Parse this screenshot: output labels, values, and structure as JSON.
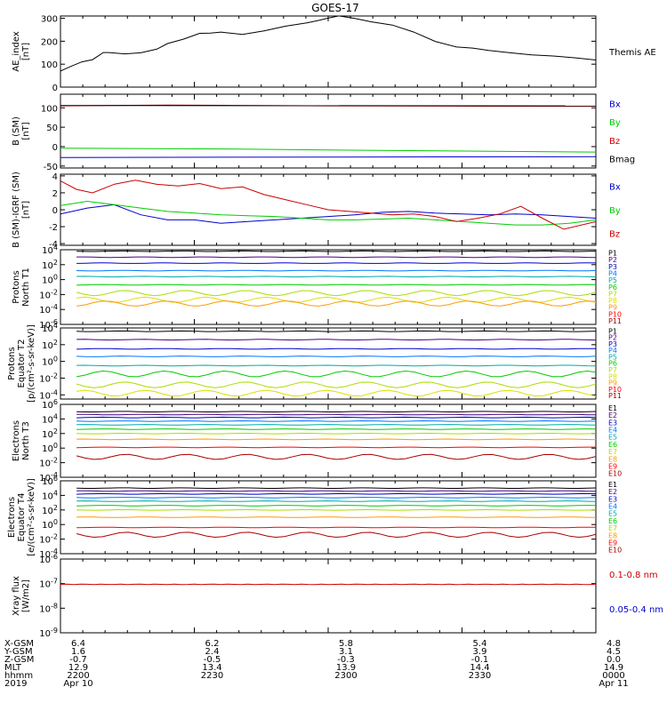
{
  "title": "GOES-17",
  "chart_data": [
    {
      "type": "line",
      "panel": "ae",
      "ylabel": "AE_index\n[nT]",
      "ylim": [
        0,
        310
      ],
      "yticks": [
        {
          "v": 0,
          "label": "0"
        },
        {
          "v": 100,
          "label": "100"
        },
        {
          "v": 200,
          "label": "200"
        },
        {
          "v": 300,
          "label": "300"
        }
      ],
      "series": [
        {
          "name": "Themis AE",
          "color": "#000000",
          "x": [
            0,
            0.02,
            0.04,
            0.06,
            0.08,
            0.09,
            0.12,
            0.15,
            0.18,
            0.2,
            0.23,
            0.26,
            0.28,
            0.3,
            0.34,
            0.38,
            0.42,
            0.46,
            0.48,
            0.5,
            0.52,
            0.55,
            0.58,
            0.62,
            0.66,
            0.7,
            0.74,
            0.77,
            0.8,
            0.84,
            0.88,
            0.92,
            0.96,
            1.0
          ],
          "y": [
            70,
            90,
            110,
            120,
            150,
            150,
            145,
            150,
            165,
            190,
            210,
            235,
            235,
            240,
            230,
            245,
            265,
            280,
            290,
            300,
            310,
            300,
            285,
            270,
            240,
            200,
            175,
            170,
            160,
            150,
            140,
            135,
            128,
            118
          ]
        }
      ]
    },
    {
      "type": "line",
      "panel": "b_sm",
      "ylabel": "B (SM)\n[nT]",
      "ylim": [
        -55,
        135
      ],
      "yticks": [
        {
          "v": -50,
          "label": "-50"
        },
        {
          "v": 0,
          "label": "0"
        },
        {
          "v": 50,
          "label": "50"
        },
        {
          "v": 100,
          "label": "100"
        }
      ],
      "series": [
        {
          "name": "Bx",
          "color": "#0000cc",
          "x": [
            0,
            1
          ],
          "y": [
            -28,
            -26
          ]
        },
        {
          "name": "By",
          "color": "#00cc00",
          "x": [
            0,
            0.3,
            0.6,
            1
          ],
          "y": [
            -4,
            -6,
            -10,
            -14
          ]
        },
        {
          "name": "Bz",
          "color": "#cc0000",
          "x": [
            0,
            0.2,
            0.5,
            0.8,
            1
          ],
          "y": [
            105,
            107,
            105,
            104,
            104
          ]
        },
        {
          "name": "Bmag",
          "color": "#000000",
          "x": [
            0,
            1
          ],
          "y": [
            106,
            105
          ]
        }
      ]
    },
    {
      "type": "line",
      "panel": "b_igrf",
      "ylabel": "B (SM)-IGRF (SM)\n[nT]",
      "ylim": [
        -4.2,
        4.2
      ],
      "yticks": [
        {
          "v": -4,
          "label": "-4"
        },
        {
          "v": -2,
          "label": "-2"
        },
        {
          "v": 0,
          "label": "0"
        },
        {
          "v": 2,
          "label": "2"
        },
        {
          "v": 4,
          "label": "4"
        }
      ],
      "series": [
        {
          "name": "Bx",
          "color": "#0000cc",
          "x": [
            0,
            0.05,
            0.1,
            0.15,
            0.2,
            0.25,
            0.3,
            0.35,
            0.4,
            0.45,
            0.5,
            0.55,
            0.6,
            0.65,
            0.7,
            0.75,
            0.8,
            0.85,
            0.9,
            0.95,
            1
          ],
          "y": [
            -0.5,
            0.2,
            0.6,
            -0.6,
            -1.2,
            -1.2,
            -1.6,
            -1.4,
            -1.2,
            -1.0,
            -0.8,
            -0.6,
            -0.3,
            -0.2,
            -0.4,
            -0.5,
            -0.6,
            -0.5,
            -0.6,
            -0.8,
            -1.0
          ]
        },
        {
          "name": "By",
          "color": "#00cc00",
          "x": [
            0,
            0.05,
            0.1,
            0.15,
            0.2,
            0.25,
            0.3,
            0.35,
            0.4,
            0.45,
            0.5,
            0.55,
            0.6,
            0.65,
            0.7,
            0.75,
            0.8,
            0.85,
            0.9,
            0.95,
            1
          ],
          "y": [
            0.5,
            1.0,
            0.6,
            0.2,
            -0.2,
            -0.4,
            -0.6,
            -0.7,
            -0.8,
            -1.0,
            -1.2,
            -1.2,
            -1.1,
            -1.0,
            -1.2,
            -1.4,
            -1.6,
            -1.8,
            -1.8,
            -1.6,
            -1.2
          ]
        },
        {
          "name": "Bz",
          "color": "#cc0000",
          "x": [
            0,
            0.03,
            0.06,
            0.1,
            0.14,
            0.18,
            0.22,
            0.26,
            0.3,
            0.34,
            0.38,
            0.42,
            0.46,
            0.5,
            0.54,
            0.58,
            0.62,
            0.66,
            0.7,
            0.74,
            0.78,
            0.82,
            0.86,
            0.9,
            0.94,
            1
          ],
          "y": [
            3.4,
            2.4,
            2.0,
            3.0,
            3.5,
            3.0,
            2.8,
            3.1,
            2.5,
            2.7,
            1.8,
            1.2,
            0.6,
            0.0,
            -0.2,
            -0.4,
            -0.6,
            -0.5,
            -0.8,
            -1.4,
            -1.0,
            -0.5,
            0.4,
            -1.0,
            -2.3,
            -1.4
          ]
        }
      ]
    },
    {
      "type": "line",
      "panel": "protons_t1",
      "ylabel": "Protons\nNorth T1",
      "log": true,
      "ylim": [
        -6,
        4
      ],
      "yticks": [
        {
          "v": 4,
          "label": "10^4"
        },
        {
          "v": 2,
          "label": "10^2"
        },
        {
          "v": 0,
          "label": "10^0"
        },
        {
          "v": -2,
          "label": "10^-2"
        },
        {
          "v": -4,
          "label": "10^-4"
        },
        {
          "v": -6,
          "label": "10^-6"
        }
      ],
      "channels": [
        {
          "name": "P1",
          "color": "#000000",
          "y": 3.8
        },
        {
          "name": "P2",
          "color": "#4b0082",
          "y": 3.0
        },
        {
          "name": "P3",
          "color": "#0000cc",
          "y": 2.2
        },
        {
          "name": "P4",
          "color": "#0077ff",
          "y": 1.2
        },
        {
          "name": "P5",
          "color": "#00aaaa",
          "y": 0.4
        },
        {
          "name": "P6",
          "color": "#00cc00",
          "y": -0.7
        },
        {
          "name": "P7",
          "color": "#aadd00",
          "y": -1.8
        },
        {
          "name": "P8",
          "color": "#dddd00",
          "y": -2.7
        },
        {
          "name": "P9",
          "color": "#ff9900",
          "y": -3.2
        },
        {
          "name": "P10",
          "color": "#ff0000",
          "y": -9
        },
        {
          "name": "P11",
          "color": "#aa0000",
          "y": -9
        }
      ]
    },
    {
      "type": "line",
      "panel": "protons_t2",
      "ylabel": "Protons\nEquator T2\n[p/(cm²-s-sr-keV)]",
      "log": true,
      "ylim": [
        -4.5,
        4
      ],
      "yticks": [
        {
          "v": 4,
          "label": "10^4"
        },
        {
          "v": 2,
          "label": "10^2"
        },
        {
          "v": 0,
          "label": "10^0"
        },
        {
          "v": -2,
          "label": "10^-2"
        },
        {
          "v": -4,
          "label": "10^-4"
        }
      ],
      "channels": [
        {
          "name": "P1",
          "color": "#000000",
          "y": 3.6
        },
        {
          "name": "P2",
          "color": "#4b0082",
          "y": 2.6
        },
        {
          "name": "P3",
          "color": "#0000cc",
          "y": 1.5
        },
        {
          "name": "P4",
          "color": "#0077ff",
          "y": 0.6
        },
        {
          "name": "P5",
          "color": "#00aaaa",
          "y": -0.5
        },
        {
          "name": "P6",
          "color": "#00cc00",
          "y": -1.5
        },
        {
          "name": "P7",
          "color": "#aadd00",
          "y": -2.8
        },
        {
          "name": "P8",
          "color": "#dddd00",
          "y": -3.8
        },
        {
          "name": "P9",
          "color": "#ff9900",
          "y": -9
        },
        {
          "name": "P10",
          "color": "#ff0000",
          "y": -9
        },
        {
          "name": "P11",
          "color": "#aa0000",
          "y": -9
        }
      ]
    },
    {
      "type": "line",
      "panel": "electrons_t3",
      "ylabel": "Electrons\nNorth T3",
      "log": true,
      "ylim": [
        -4,
        6
      ],
      "yticks": [
        {
          "v": 6,
          "label": "10^6"
        },
        {
          "v": 4,
          "label": "10^4"
        },
        {
          "v": 2,
          "label": "10^2"
        },
        {
          "v": 0,
          "label": "10^0"
        },
        {
          "v": -2,
          "label": "10^-2"
        },
        {
          "v": -4,
          "label": "10^-4"
        }
      ],
      "channels": [
        {
          "name": "E1",
          "color": "#000000",
          "y": 5.0
        },
        {
          "name": "E2",
          "color": "#4b0082",
          "y": 4.6
        },
        {
          "name": "E3",
          "color": "#0000cc",
          "y": 4.2
        },
        {
          "name": "E4",
          "color": "#0077ff",
          "y": 3.7
        },
        {
          "name": "E5",
          "color": "#00aaaa",
          "y": 3.2
        },
        {
          "name": "E6",
          "color": "#00cc00",
          "y": 2.6
        },
        {
          "name": "E7",
          "color": "#aadd00",
          "y": 2.0
        },
        {
          "name": "E8",
          "color": "#ff9900",
          "y": 1.2
        },
        {
          "name": "E9",
          "color": "#ff0000",
          "y": 0.1
        },
        {
          "name": "E10",
          "color": "#aa0000",
          "y": -1.2
        }
      ]
    },
    {
      "type": "line",
      "panel": "electrons_t4",
      "ylabel": "Electrons\nEquator T4\n[e/(cm²-s-sr-keV)]",
      "log": true,
      "ylim": [
        -4,
        6
      ],
      "yticks": [
        {
          "v": 6,
          "label": "10^6"
        },
        {
          "v": 4,
          "label": "10^4"
        },
        {
          "v": 2,
          "label": "10^2"
        },
        {
          "v": 0,
          "label": "10^0"
        },
        {
          "v": -2,
          "label": "10^-2"
        },
        {
          "v": -4,
          "label": "10^-4"
        }
      ],
      "channels": [
        {
          "name": "E1",
          "color": "#000000",
          "y": 5.0
        },
        {
          "name": "E2",
          "color": "#4b0082",
          "y": 4.6
        },
        {
          "name": "E3",
          "color": "#0000cc",
          "y": 4.2
        },
        {
          "name": "E4",
          "color": "#0077ff",
          "y": 3.7
        },
        {
          "name": "E5",
          "color": "#00aaaa",
          "y": 3.2
        },
        {
          "name": "E6",
          "color": "#00cc00",
          "y": 2.6
        },
        {
          "name": "E7",
          "color": "#aadd00",
          "y": 2.0
        },
        {
          "name": "E8",
          "color": "#ff9900",
          "y": 1.0
        },
        {
          "name": "E9",
          "color": "#ff0000",
          "y": -0.4
        },
        {
          "name": "E10",
          "color": "#aa0000",
          "y": -1.4
        }
      ]
    },
    {
      "type": "line",
      "panel": "xray",
      "ylabel": "Xray flux\n[W/m2]",
      "log": true,
      "ylim": [
        -9,
        -6
      ],
      "yticks": [
        {
          "v": -6,
          "label": "10^-6"
        },
        {
          "v": -7,
          "label": "10^-7"
        },
        {
          "v": -8,
          "label": "10^-8"
        },
        {
          "v": -9,
          "label": "10^-9"
        }
      ],
      "series": [
        {
          "name": "0.1-0.8 nm",
          "color": "#cc0000",
          "y": -7.03
        },
        {
          "name": "0.05-0.4 nm",
          "color": "#0000cc",
          "y": -12
        }
      ]
    }
  ],
  "x_axis": {
    "row_labels": [
      "X-GSM",
      "Y-GSM",
      "Z-GSM",
      "MLT",
      "hhmm",
      "2019"
    ],
    "columns": [
      {
        "x": 0.0,
        "values": [
          "6.4",
          "1.6",
          "-0.7",
          "12.9",
          "2200",
          "Apr 10"
        ]
      },
      {
        "x": 0.25,
        "values": [
          "6.2",
          "2.4",
          "-0.5",
          "13.4",
          "2230",
          ""
        ]
      },
      {
        "x": 0.5,
        "values": [
          "5.8",
          "3.1",
          "-0.3",
          "13.9",
          "2300",
          ""
        ]
      },
      {
        "x": 0.75,
        "values": [
          "5.4",
          "3.9",
          "-0.1",
          "14.4",
          "2330",
          ""
        ]
      },
      {
        "x": 1.0,
        "values": [
          "4.8",
          "4.5",
          "0.0",
          "14.9",
          "0000",
          "Apr 11"
        ]
      }
    ]
  }
}
